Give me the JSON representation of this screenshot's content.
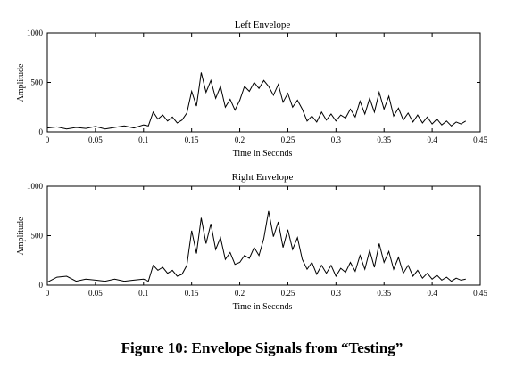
{
  "caption": "Figure 10: Envelope Signals from “Testing”",
  "chart_data": [
    {
      "type": "line",
      "title": "Left Envelope",
      "xlabel": "Time in Seconds",
      "ylabel": "Amplitude",
      "xlim": [
        0,
        0.45
      ],
      "ylim": [
        0,
        1000
      ],
      "xticks": [
        "0",
        "0.05",
        "0.1",
        "0.15",
        "0.2",
        "0.25",
        "0.3",
        "0.35",
        "0.4",
        "0.45"
      ],
      "yticks": [
        "0",
        "500",
        "1000"
      ],
      "grid": false,
      "series": [
        {
          "x": [
            0,
            0.01,
            0.02,
            0.03,
            0.04,
            0.05,
            0.06,
            0.07,
            0.08,
            0.09,
            0.1,
            0.105,
            0.11,
            0.115,
            0.12,
            0.125,
            0.13,
            0.135,
            0.14,
            0.145,
            0.15,
            0.155,
            0.16,
            0.165,
            0.17,
            0.175,
            0.18,
            0.185,
            0.19,
            0.195,
            0.2,
            0.205,
            0.21,
            0.215,
            0.22,
            0.225,
            0.23,
            0.235,
            0.24,
            0.245,
            0.25,
            0.255,
            0.26,
            0.265,
            0.27,
            0.275,
            0.28,
            0.285,
            0.29,
            0.295,
            0.3,
            0.305,
            0.31,
            0.315,
            0.32,
            0.325,
            0.33,
            0.335,
            0.34,
            0.345,
            0.35,
            0.355,
            0.36,
            0.365,
            0.37,
            0.375,
            0.38,
            0.385,
            0.39,
            0.395,
            0.4,
            0.405,
            0.41,
            0.415,
            0.42,
            0.425,
            0.43,
            0.435
          ],
          "y": [
            40,
            50,
            30,
            45,
            35,
            55,
            30,
            45,
            60,
            40,
            70,
            60,
            200,
            130,
            170,
            110,
            150,
            90,
            120,
            190,
            410,
            260,
            600,
            400,
            520,
            340,
            460,
            250,
            330,
            220,
            320,
            460,
            410,
            500,
            440,
            520,
            460,
            370,
            480,
            300,
            390,
            250,
            320,
            230,
            110,
            160,
            100,
            200,
            120,
            180,
            110,
            170,
            140,
            230,
            150,
            310,
            180,
            340,
            200,
            400,
            230,
            360,
            160,
            240,
            120,
            190,
            100,
            170,
            90,
            150,
            80,
            130,
            70,
            110,
            60,
            100,
            80,
            110
          ]
        }
      ]
    },
    {
      "type": "line",
      "title": "Right Envelope",
      "xlabel": "Time in Seconds",
      "ylabel": "Amplitude",
      "xlim": [
        0,
        0.45
      ],
      "ylim": [
        0,
        1000
      ],
      "xticks": [
        "0",
        "0.05",
        "0.1",
        "0.15",
        "0.2",
        "0.25",
        "0.3",
        "0.35",
        "0.4",
        "0.45"
      ],
      "yticks": [
        "0",
        "500",
        "1000"
      ],
      "grid": false,
      "series": [
        {
          "x": [
            0,
            0.01,
            0.02,
            0.03,
            0.04,
            0.05,
            0.06,
            0.07,
            0.08,
            0.09,
            0.1,
            0.105,
            0.11,
            0.115,
            0.12,
            0.125,
            0.13,
            0.135,
            0.14,
            0.145,
            0.15,
            0.155,
            0.16,
            0.165,
            0.17,
            0.175,
            0.18,
            0.185,
            0.19,
            0.195,
            0.2,
            0.205,
            0.21,
            0.215,
            0.22,
            0.225,
            0.23,
            0.235,
            0.24,
            0.245,
            0.25,
            0.255,
            0.26,
            0.265,
            0.27,
            0.275,
            0.28,
            0.285,
            0.29,
            0.295,
            0.3,
            0.305,
            0.31,
            0.315,
            0.32,
            0.325,
            0.33,
            0.335,
            0.34,
            0.345,
            0.35,
            0.355,
            0.36,
            0.365,
            0.37,
            0.375,
            0.38,
            0.385,
            0.39,
            0.395,
            0.4,
            0.405,
            0.41,
            0.415,
            0.42,
            0.425,
            0.43,
            0.435
          ],
          "y": [
            30,
            80,
            90,
            40,
            60,
            50,
            40,
            60,
            40,
            50,
            60,
            40,
            200,
            150,
            180,
            120,
            150,
            90,
            110,
            200,
            550,
            320,
            680,
            420,
            620,
            360,
            480,
            260,
            330,
            210,
            230,
            300,
            270,
            380,
            300,
            470,
            750,
            490,
            640,
            380,
            560,
            360,
            480,
            260,
            160,
            230,
            110,
            200,
            120,
            200,
            90,
            170,
            130,
            230,
            140,
            300,
            160,
            350,
            180,
            420,
            230,
            340,
            160,
            280,
            120,
            200,
            90,
            150,
            70,
            120,
            60,
            100,
            50,
            80,
            40,
            70,
            50,
            60
          ]
        }
      ]
    }
  ]
}
